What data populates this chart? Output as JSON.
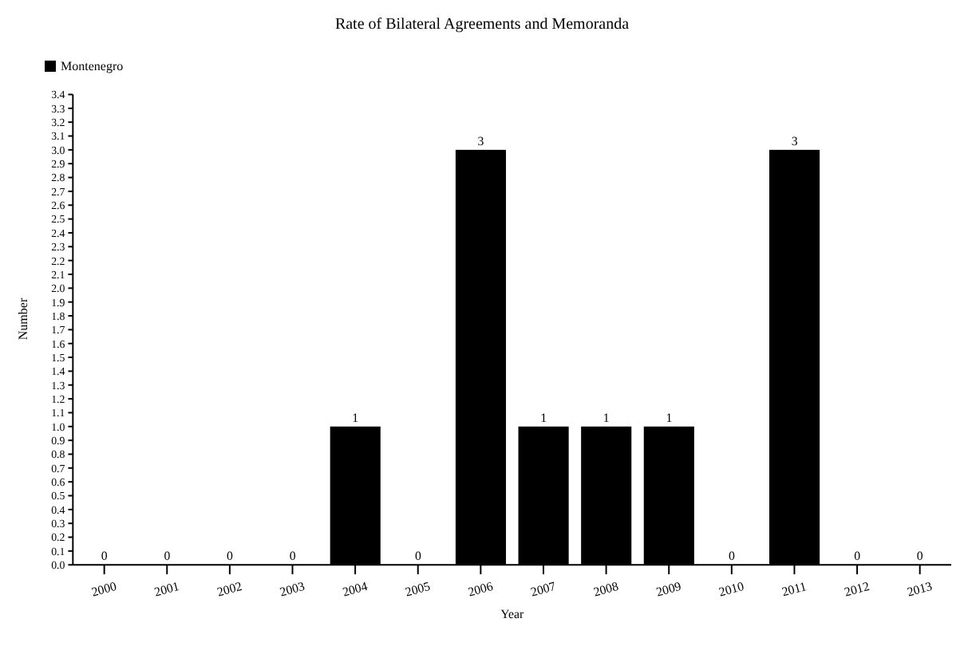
{
  "chart_data": {
    "type": "bar",
    "title": "Rate of Bilateral Agreements and Memoranda",
    "xlabel": "Year",
    "ylabel": "Number",
    "categories": [
      "2000",
      "2001",
      "2002",
      "2003",
      "2004",
      "2005",
      "2006",
      "2007",
      "2008",
      "2009",
      "2010",
      "2011",
      "2012",
      "2013"
    ],
    "series": [
      {
        "name": "Montenegro",
        "color": "#000000",
        "values": [
          0,
          0,
          0,
          0,
          1,
          0,
          3,
          1,
          1,
          1,
          0,
          3,
          0,
          0
        ]
      }
    ],
    "ylim": [
      0,
      3.4
    ],
    "yticks": [
      {
        "value": 0,
        "label": "0.0"
      },
      {
        "value": 0.1,
        "label": "0.1"
      },
      {
        "value": 0.2,
        "label": "0.2"
      },
      {
        "value": 0.3,
        "label": "0.3"
      },
      {
        "value": 0.4,
        "label": "0.4"
      },
      {
        "value": 0.5,
        "label": "0.5"
      },
      {
        "value": 0.6,
        "label": "0.6"
      },
      {
        "value": 0.7,
        "label": "0.7"
      },
      {
        "value": 0.8,
        "label": "0.8"
      },
      {
        "value": 0.9,
        "label": "0.9"
      },
      {
        "value": 1,
        "label": "1.0"
      },
      {
        "value": 1.1,
        "label": "1.1"
      },
      {
        "value": 1.2,
        "label": "1.2"
      },
      {
        "value": 1.3,
        "label": "1.3"
      },
      {
        "value": 1.4,
        "label": "1.4"
      },
      {
        "value": 1.5,
        "label": "1.5"
      },
      {
        "value": 1.6,
        "label": "1.6"
      },
      {
        "value": 1.7,
        "label": "1.7"
      },
      {
        "value": 1.8,
        "label": "1.8"
      },
      {
        "value": 1.9,
        "label": "1.9"
      },
      {
        "value": 2,
        "label": "2.0"
      },
      {
        "value": 2.1,
        "label": "2.1"
      },
      {
        "value": 2.2,
        "label": "2.2"
      },
      {
        "value": 2.3,
        "label": "2.3"
      },
      {
        "value": 2.4,
        "label": "2.4"
      },
      {
        "value": 2.5,
        "label": "2.5"
      },
      {
        "value": 2.6,
        "label": "2.6"
      },
      {
        "value": 2.7,
        "label": "2.7"
      },
      {
        "value": 2.8,
        "label": "2.8"
      },
      {
        "value": 2.9,
        "label": "2.9"
      },
      {
        "value": 3,
        "label": "3.0"
      },
      {
        "value": 3.1,
        "label": "3.1"
      },
      {
        "value": 3.2,
        "label": "3.2"
      },
      {
        "value": 3.3,
        "label": "3.3"
      },
      {
        "value": 3.4,
        "label": "3.4"
      }
    ],
    "grid": false,
    "legend": "top left",
    "data_labels": true
  }
}
